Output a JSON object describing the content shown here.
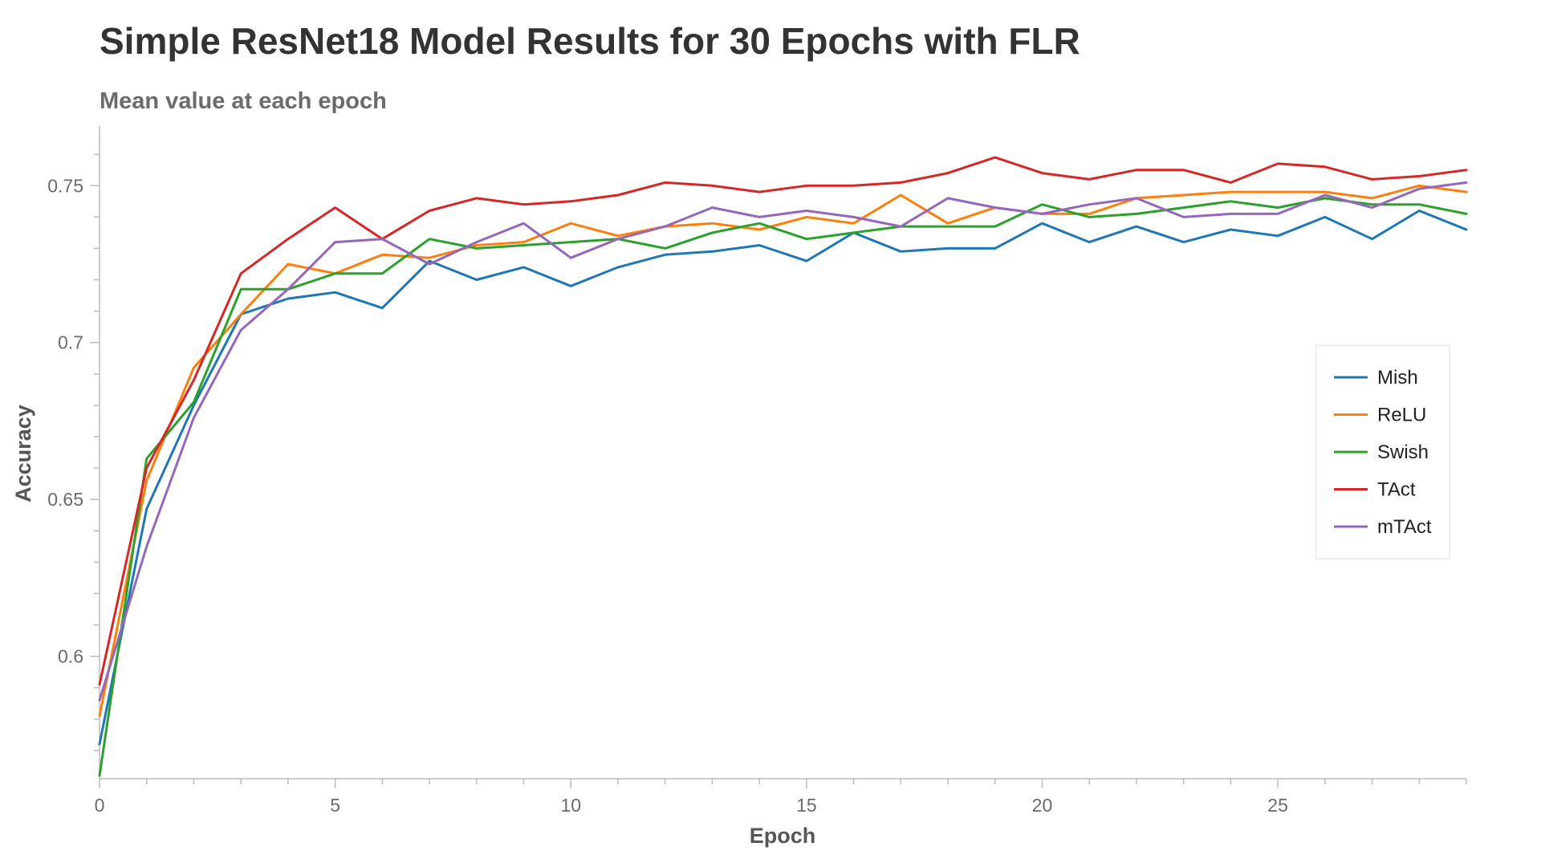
{
  "chart_data": {
    "type": "line",
    "title": "Simple ResNet18 Model Results for 30 Epochs with FLR",
    "subtitle": "Mean value at each epoch",
    "xlabel": "Epoch",
    "ylabel": "Accuracy",
    "x": [
      0,
      1,
      2,
      3,
      4,
      5,
      6,
      7,
      8,
      9,
      10,
      11,
      12,
      13,
      14,
      15,
      16,
      17,
      18,
      19,
      20,
      21,
      22,
      23,
      24,
      25,
      26,
      27,
      28,
      29
    ],
    "xlim": [
      0,
      29
    ],
    "ylim": [
      0.561,
      0.769
    ],
    "x_ticks": [
      0,
      5,
      10,
      15,
      20,
      25
    ],
    "x_tick_labels": [
      "0",
      "5",
      "10",
      "15",
      "20",
      "25"
    ],
    "y_ticks": [
      0.6,
      0.65,
      0.7,
      0.75
    ],
    "y_tick_labels": [
      "0.6",
      "0.65",
      "0.7",
      "0.75"
    ],
    "legend_position": "right",
    "grid": false,
    "series": [
      {
        "name": "Mish",
        "color": "#1f77b4",
        "values": [
          0.572,
          0.647,
          0.68,
          0.709,
          0.714,
          0.716,
          0.711,
          0.726,
          0.72,
          0.724,
          0.718,
          0.724,
          0.728,
          0.729,
          0.731,
          0.726,
          0.735,
          0.729,
          0.73,
          0.73,
          0.738,
          0.732,
          0.737,
          0.732,
          0.736,
          0.734,
          0.74,
          0.733,
          0.742,
          0.736
        ]
      },
      {
        "name": "ReLU",
        "color": "#ff7f0e",
        "values": [
          0.581,
          0.656,
          0.692,
          0.709,
          0.725,
          0.722,
          0.728,
          0.727,
          0.731,
          0.732,
          0.738,
          0.734,
          0.737,
          0.738,
          0.736,
          0.74,
          0.738,
          0.747,
          0.738,
          0.743,
          0.741,
          0.741,
          0.746,
          0.747,
          0.748,
          0.748,
          0.748,
          0.746,
          0.75,
          0.748
        ]
      },
      {
        "name": "Swish",
        "color": "#2ca02c",
        "values": [
          0.562,
          0.663,
          0.681,
          0.717,
          0.717,
          0.722,
          0.722,
          0.733,
          0.73,
          0.731,
          0.732,
          0.733,
          0.73,
          0.735,
          0.738,
          0.733,
          0.735,
          0.737,
          0.737,
          0.737,
          0.744,
          0.74,
          0.741,
          0.743,
          0.745,
          0.743,
          0.746,
          0.744,
          0.744,
          0.741
        ]
      },
      {
        "name": "TAct",
        "color": "#d62728",
        "values": [
          0.591,
          0.66,
          0.688,
          0.722,
          0.733,
          0.743,
          0.733,
          0.742,
          0.746,
          0.744,
          0.745,
          0.747,
          0.751,
          0.75,
          0.748,
          0.75,
          0.75,
          0.751,
          0.754,
          0.759,
          0.754,
          0.752,
          0.755,
          0.755,
          0.751,
          0.757,
          0.756,
          0.752,
          0.753,
          0.755
        ]
      },
      {
        "name": "mTAct",
        "color": "#9467bd",
        "values": [
          0.586,
          0.635,
          0.676,
          0.704,
          0.717,
          0.732,
          0.733,
          0.725,
          0.732,
          0.738,
          0.727,
          0.733,
          0.737,
          0.743,
          0.74,
          0.742,
          0.74,
          0.737,
          0.746,
          0.743,
          0.741,
          0.744,
          0.746,
          0.74,
          0.741,
          0.741,
          0.747,
          0.743,
          0.749,
          0.751
        ]
      }
    ]
  }
}
